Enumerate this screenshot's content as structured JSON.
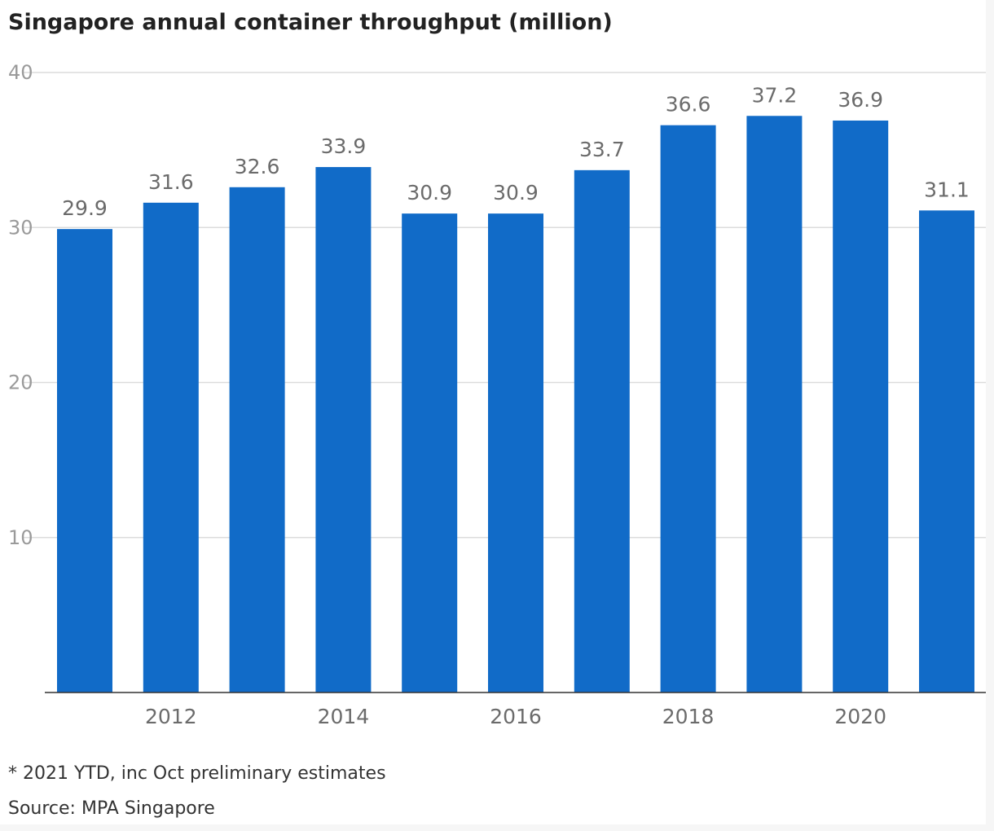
{
  "chart_data": {
    "type": "bar",
    "title": "Singapore annual container throughput (million)",
    "categories": [
      "2011",
      "2012",
      "2013",
      "2014",
      "2015",
      "2016",
      "2017",
      "2018",
      "2019",
      "2020",
      "2021"
    ],
    "visible_x_ticks": [
      "2012",
      "2014",
      "2016",
      "2018",
      "2020"
    ],
    "values": [
      29.9,
      31.6,
      32.6,
      33.9,
      30.9,
      30.9,
      33.7,
      36.6,
      37.2,
      36.9,
      31.1
    ],
    "value_labels": [
      "29.9",
      "31.6",
      "32.6",
      "33.9",
      "30.9",
      "30.9",
      "33.7",
      "36.6",
      "37.2",
      "36.9",
      "31.1"
    ],
    "y_ticks": [
      "10",
      "20",
      "30",
      "40"
    ],
    "ylim": [
      0,
      40
    ],
    "grid": true,
    "bar_color": "#116bc8"
  },
  "footnotes": {
    "note": "* 2021 YTD, inc Oct preliminary estimates",
    "source": "Source: MPA Singapore"
  }
}
